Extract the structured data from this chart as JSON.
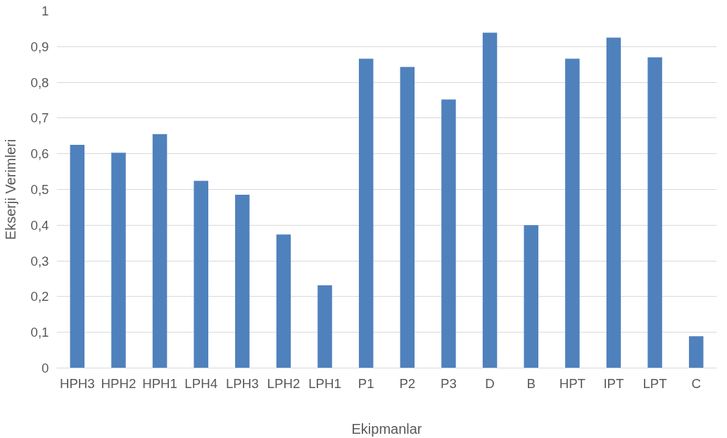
{
  "chart_data": {
    "type": "bar",
    "xlabel": "Ekipmanlar",
    "ylabel": "Ekserji Verimleri",
    "categories": [
      "HPH3",
      "HPH2",
      "HPH1",
      "LPH4",
      "LPH3",
      "LPH2",
      "LPH1",
      "P1",
      "P2",
      "P3",
      "D",
      "B",
      "HPT",
      "IPT",
      "LPT",
      "C"
    ],
    "values": [
      0.625,
      0.603,
      0.655,
      0.524,
      0.485,
      0.374,
      0.232,
      0.866,
      0.843,
      0.752,
      0.939,
      0.4,
      0.866,
      0.925,
      0.87,
      0.089
    ],
    "color": "#4f81bd",
    "ylim": [
      0,
      1
    ],
    "yticks": [
      0,
      {
        "value": 0.1,
        "label": "0,1"
      },
      {
        "value": 0.2,
        "label": "0,2"
      },
      {
        "value": 0.3,
        "label": "0,3"
      },
      {
        "value": 0.4,
        "label": "0,4"
      },
      {
        "value": 0.5,
        "label": "0,5"
      },
      {
        "value": 0.6,
        "label": "0,6"
      },
      {
        "value": 0.7,
        "label": "0,7"
      },
      {
        "value": 0.8,
        "label": "0,8"
      },
      {
        "value": 0.9,
        "label": "0,9"
      },
      1
    ],
    "grid": "y"
  }
}
